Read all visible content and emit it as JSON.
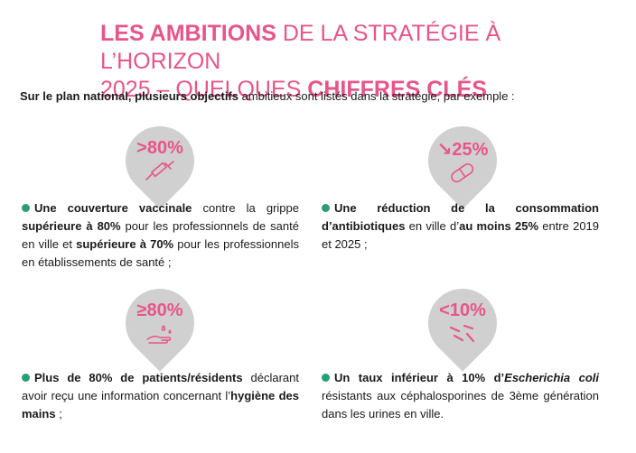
{
  "title": {
    "line1_bold": "LES AMBITIONS",
    "line1_rest": " DE LA STRATÉGIE À L’HORIZON",
    "line2_rest": "2025 – QUELQUES ",
    "line2_bold": "CHIFFRES CLÉS"
  },
  "intro": {
    "bold": "Sur le plan national, plusieurs objectifs",
    "rest": " ambitieux sont listés dans la stratégie, par exemple :"
  },
  "badges": [
    {
      "value": ">80%",
      "icon": "syringe-icon"
    },
    {
      "value": "↘25%",
      "icon": "capsule-icon"
    },
    {
      "value": "≥80%",
      "icon": "handwash-icon"
    },
    {
      "value": "<10%",
      "icon": "bacteria-icon"
    }
  ],
  "items": {
    "vaccination": {
      "b1": "Une couverture vaccinale",
      "t1": " contre la grippe ",
      "b2": "supérieure à 80%",
      "t2": " pour les professionnels de santé en ville et ",
      "b3": "supérieure à 70%",
      "t3": " pour les professionnels en établissements de santé ;"
    },
    "antibiotics": {
      "b1": "Une réduction de la consommation d’antibiotiques",
      "t1": " en ville d’",
      "b2": "au moins 25%",
      "t2": " entre 2019 et 2025 ;"
    },
    "hygiene": {
      "b1": "Plus de 80% de patients/résidents",
      "t1": " déclarant avoir reçu une information concernant l’",
      "b2": "hygiène des mains",
      "t2": " ;"
    },
    "ecoli": {
      "b1": "Un taux inférieur à 10% d’",
      "i1": "Escherichia coli",
      "t1": " résistants aux céphalosporines de 3ème génération dans les urines en ville."
    }
  },
  "colors": {
    "accent": "#e8558a",
    "bullet": "#26a06e",
    "badge": "#d0d0d0"
  }
}
